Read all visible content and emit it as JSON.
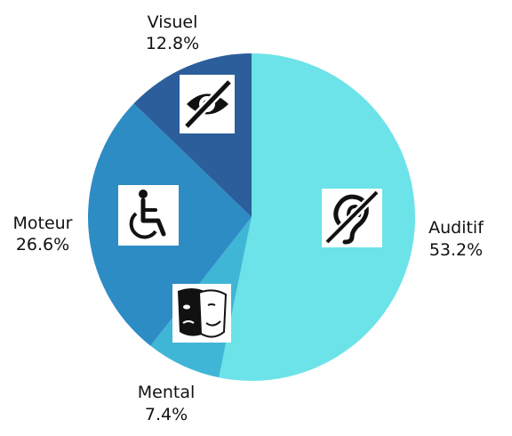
{
  "chart_data": {
    "type": "pie",
    "title": "",
    "unit": "%",
    "slices": [
      {
        "name": "Auditif",
        "value": 53.2,
        "value_label": "53.2%",
        "color": "#6ce3e8",
        "icon": "hearing-impairment-icon"
      },
      {
        "name": "Mental",
        "value": 7.4,
        "value_label": "7.4%",
        "color": "#40b6d6",
        "icon": "mental-disability-mask-icon"
      },
      {
        "name": "Moteur",
        "value": 26.6,
        "value_label": "26.6%",
        "color": "#2d8cc4",
        "icon": "wheelchair-icon"
      },
      {
        "name": "Visuel",
        "value": 12.8,
        "value_label": "12.8%",
        "color": "#2b5e9a",
        "icon": "visual-impairment-icon"
      }
    ]
  }
}
